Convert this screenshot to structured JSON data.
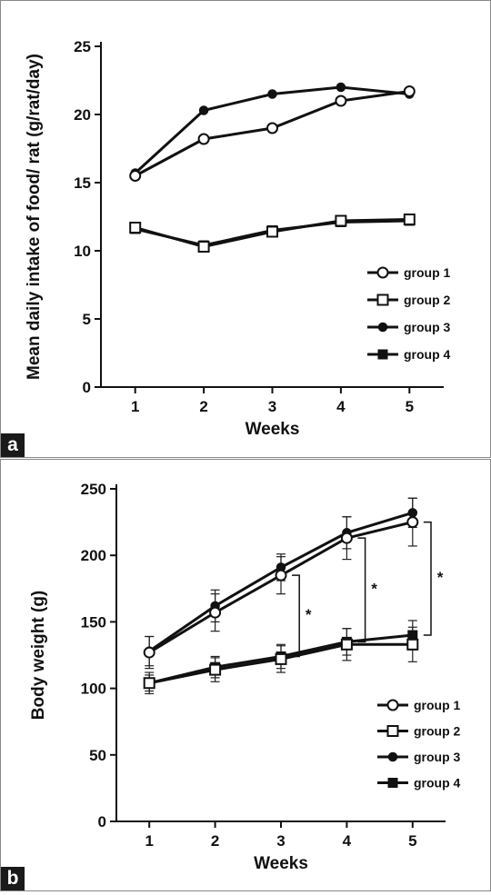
{
  "panels": [
    {
      "letter": "a"
    },
    {
      "letter": "b"
    }
  ],
  "chart_data": [
    {
      "type": "line",
      "title": "",
      "xlabel": "Weeks",
      "ylabel": "Mean daily intake of food/ rat (g/rat/day)",
      "x": [
        1,
        2,
        3,
        4,
        5
      ],
      "xlim": [
        0.5,
        5.5
      ],
      "ylim": [
        0,
        25
      ],
      "yticks": [
        0,
        5,
        10,
        15,
        20,
        25
      ],
      "legend_position": "lower-right",
      "series": [
        {
          "name": "group 1",
          "marker": "open-circle",
          "values": [
            15.5,
            18.2,
            19.0,
            21.0,
            21.7
          ]
        },
        {
          "name": "group 2",
          "marker": "open-square",
          "values": [
            11.7,
            10.3,
            11.4,
            12.2,
            12.3
          ]
        },
        {
          "name": "group 3",
          "marker": "filled-circle",
          "values": [
            15.7,
            20.3,
            21.5,
            22.0,
            21.5
          ]
        },
        {
          "name": "group 4",
          "marker": "filled-square",
          "values": [
            11.6,
            10.4,
            11.5,
            12.1,
            12.2
          ]
        }
      ]
    },
    {
      "type": "line",
      "title": "",
      "xlabel": "Weeks",
      "ylabel": "Body weight (g)",
      "x": [
        1,
        2,
        3,
        4,
        5
      ],
      "xlim": [
        0.5,
        5.5
      ],
      "ylim": [
        0,
        250
      ],
      "yticks": [
        0,
        50,
        100,
        150,
        200,
        250
      ],
      "legend_position": "lower-right",
      "series": [
        {
          "name": "group 1",
          "marker": "open-circle",
          "values": [
            127,
            157,
            185,
            213,
            225
          ],
          "errors": [
            12,
            14,
            14,
            16,
            18
          ]
        },
        {
          "name": "group 2",
          "marker": "open-square",
          "values": [
            104,
            114,
            122,
            133,
            133
          ],
          "errors": [
            8,
            9,
            10,
            12,
            13
          ]
        },
        {
          "name": "group 3",
          "marker": "filled-circle",
          "values": [
            128,
            162,
            191,
            217,
            232
          ],
          "errors": [
            11,
            12,
            10,
            12,
            11
          ]
        },
        {
          "name": "group 4",
          "marker": "filled-square",
          "values": [
            104,
            116,
            124,
            135,
            140
          ],
          "errors": [
            6,
            8,
            9,
            10,
            11
          ]
        }
      ],
      "significance": [
        {
          "x_between": [
            3,
            3.5
          ],
          "range": [
            124,
            185
          ],
          "label": "*"
        },
        {
          "x_between": [
            4,
            4.5
          ],
          "range": [
            135,
            213
          ],
          "label": "*"
        },
        {
          "x_between": [
            5,
            5.5
          ],
          "range": [
            140,
            225
          ],
          "label": "*"
        }
      ]
    }
  ]
}
